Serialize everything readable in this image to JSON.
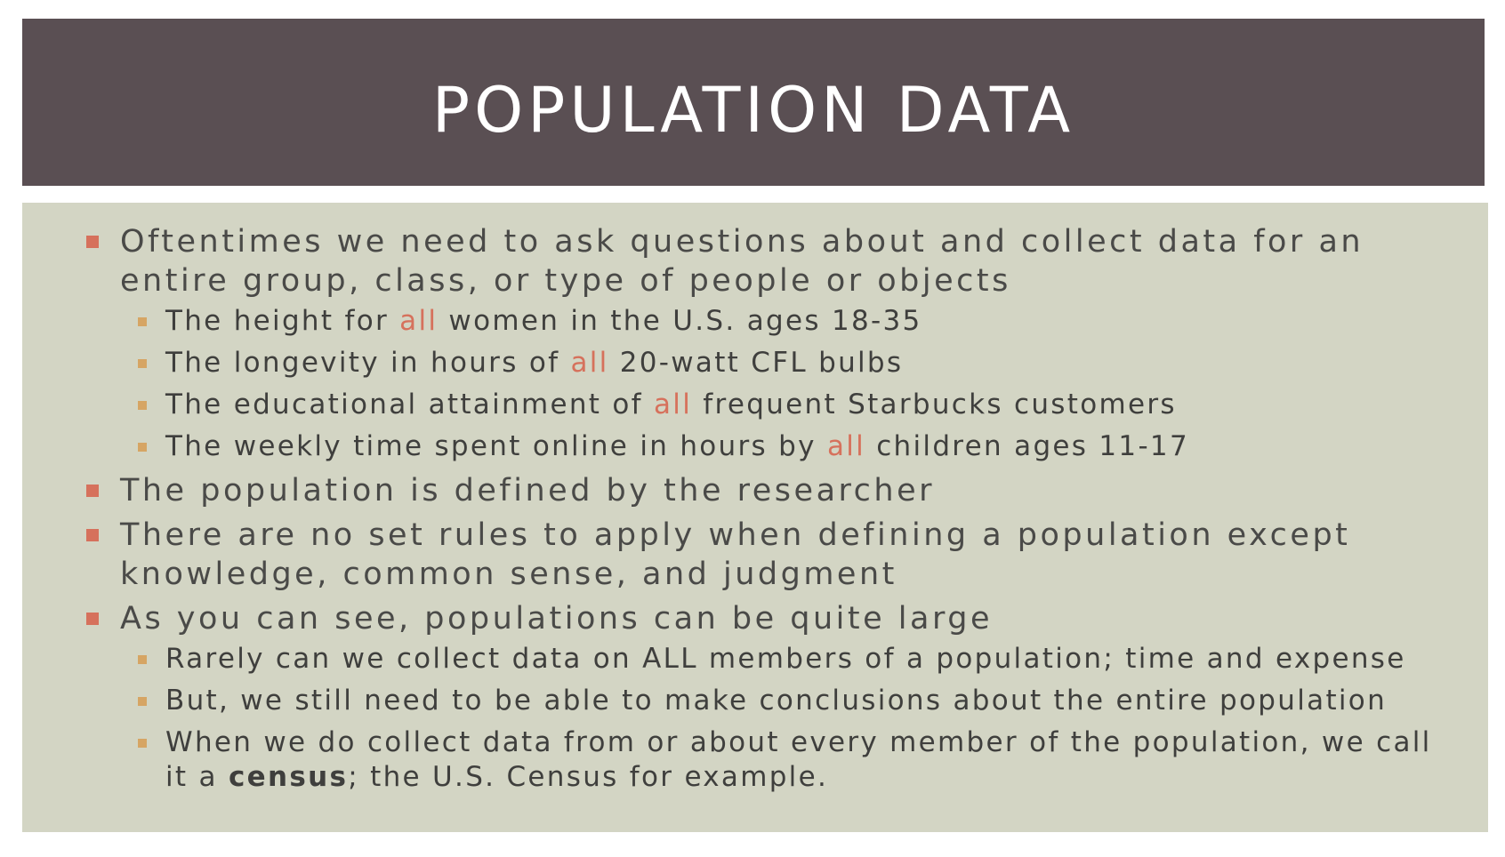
{
  "title": "POPULATION DATA",
  "colors": {
    "title_bar": "#5a4f53",
    "title_text": "#ffffff",
    "content_bg": "#d3d5c4",
    "bullet_main": "#d6715c",
    "bullet_sub": "#d6a564",
    "highlight": "#d6715c",
    "text": "#4a4a48"
  },
  "bullets": {
    "b1": {
      "text": "Oftentimes we need to ask questions about and collect data for an entire group, class, or type of people or objects",
      "subs": [
        {
          "pre": "The height for ",
          "hl": "all",
          "post": " women in the U.S. ages 18-35"
        },
        {
          "pre": "The longevity in hours of ",
          "hl": "all",
          "post": " 20-watt CFL bulbs"
        },
        {
          "pre": "The educational attainment of ",
          "hl": "all",
          "post": " frequent Starbucks customers"
        },
        {
          "pre": "The weekly time spent online in hours by ",
          "hl": "all",
          "post": " children ages 11-17"
        }
      ]
    },
    "b2": {
      "text": "The population is defined by the researcher"
    },
    "b3": {
      "text": "There are no set rules to apply when defining a population except knowledge, common sense, and judgment"
    },
    "b4": {
      "text": "As you can see, populations can be quite large",
      "subs": [
        {
          "text": "Rarely can we collect data on ALL members of a population; time and expense"
        },
        {
          "text": "But, we still need to be able to make conclusions about the entire population"
        },
        {
          "pre": "When we do collect data from or about every member of the population, we call it a ",
          "bold": "census",
          "post": "; the U.S. Census for example."
        }
      ]
    }
  }
}
